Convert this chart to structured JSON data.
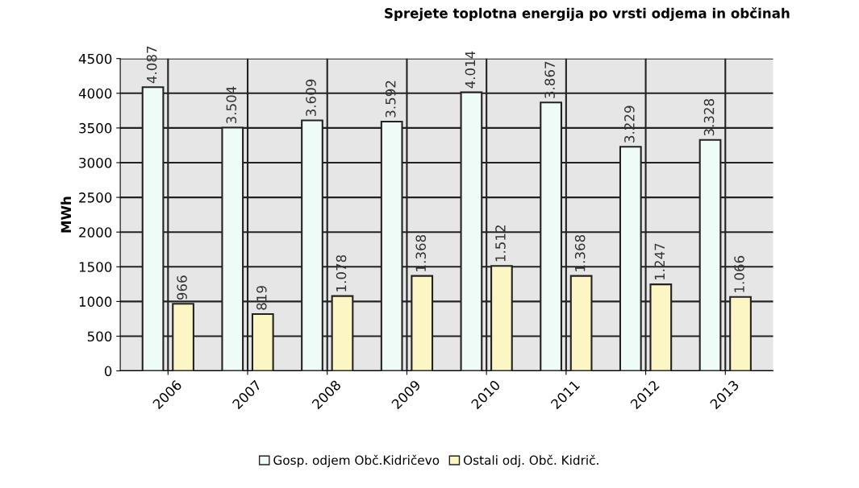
{
  "chart_data": {
    "type": "bar",
    "title": "Sprejete toplotna energija po vrsti odjema in občinah",
    "ylabel": "MWh",
    "categories": [
      "2006",
      "2007",
      "2008",
      "2009",
      "2010",
      "2011",
      "2012",
      "2013"
    ],
    "series": [
      {
        "name": "Gosp. odjem Obč.Kidričevo",
        "color": "#eefbf7",
        "values": [
          4087,
          3504,
          3609,
          3592,
          4014,
          3867,
          3229,
          3328
        ],
        "value_labels": [
          "4.087",
          "3.504",
          "3.609",
          "3.592",
          "4.014",
          "3.867",
          "3.229",
          "3.328"
        ]
      },
      {
        "name": "Ostali odj. Obč. Kidrič.",
        "color": "#fcf6c4",
        "values": [
          966,
          819,
          1078,
          1368,
          1512,
          1368,
          1247,
          1066
        ],
        "value_labels": [
          "966",
          "819",
          "1.078",
          "1.368",
          "1.512",
          "1.368",
          "1.247",
          "1.066"
        ]
      }
    ],
    "ylim": [
      0,
      4500
    ],
    "yticks": [
      0,
      500,
      1000,
      1500,
      2000,
      2500,
      3000,
      3500,
      4000,
      4500
    ],
    "grid": true,
    "legend": "bottom"
  }
}
